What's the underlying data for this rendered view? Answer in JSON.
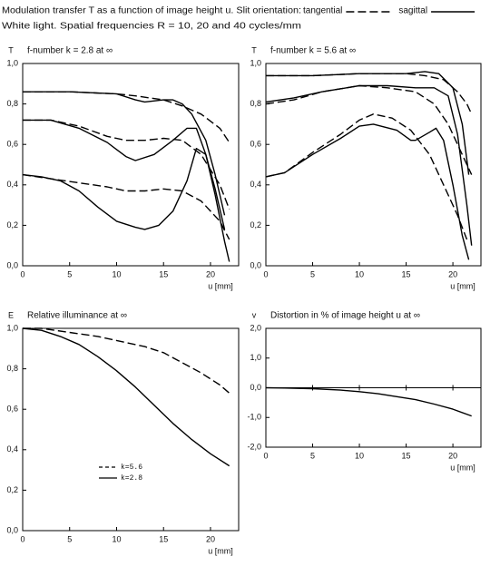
{
  "header": {
    "text": "Modulation transfer T as a function of image height u. Slit orientation:",
    "legend": [
      {
        "name": "tangential",
        "style": "dashed"
      },
      {
        "name": "sagittal",
        "style": "solid"
      }
    ],
    "subtitle": "White light. Spatial frequencies R = 10, 20 and 40 cycles/mm"
  },
  "chart_data": [
    {
      "type": "line",
      "title": "f-number k = 2.8 at ∞",
      "ylabel": "T",
      "xlabel": "u [mm]",
      "xlim": [
        0,
        23
      ],
      "ylim": [
        0,
        1
      ],
      "xticks": [
        0,
        5,
        10,
        15,
        20
      ],
      "yticks": [
        {
          "value": 0,
          "label": "0,0"
        },
        {
          "value": 0.2,
          "label": "0,2"
        },
        {
          "value": 0.4,
          "label": "0,4"
        },
        {
          "value": 0.6,
          "label": "0,6"
        },
        {
          "value": 0.8,
          "label": "0,8"
        },
        {
          "value": 1,
          "label": "1,0"
        }
      ],
      "series": [
        {
          "style": "solid",
          "color": "#000000",
          "x": [
            0,
            5,
            10,
            12,
            13,
            15,
            16,
            17,
            18,
            19.5,
            20.5,
            21.5
          ],
          "values": [
            0.86,
            0.86,
            0.85,
            0.82,
            0.81,
            0.82,
            0.82,
            0.8,
            0.75,
            0.62,
            0.45,
            0.25
          ]
        },
        {
          "style": "dashed",
          "color": "#000000",
          "x": [
            0,
            5,
            10,
            12,
            15,
            17,
            19,
            21,
            22
          ],
          "values": [
            0.86,
            0.86,
            0.85,
            0.84,
            0.82,
            0.79,
            0.75,
            0.68,
            0.61
          ]
        },
        {
          "style": "solid",
          "color": "#000000",
          "x": [
            0,
            3,
            6,
            9,
            11,
            12,
            14,
            16,
            17.5,
            18.5,
            19.5,
            20.5,
            21.5
          ],
          "values": [
            0.72,
            0.72,
            0.68,
            0.61,
            0.54,
            0.52,
            0.55,
            0.62,
            0.68,
            0.68,
            0.55,
            0.38,
            0.18
          ]
        },
        {
          "style": "dashed",
          "color": "#000000",
          "x": [
            0,
            3,
            6,
            9,
            11,
            13,
            15,
            17,
            19,
            21,
            22
          ],
          "values": [
            0.72,
            0.72,
            0.69,
            0.64,
            0.62,
            0.62,
            0.63,
            0.62,
            0.55,
            0.4,
            0.28
          ]
        },
        {
          "style": "solid",
          "color": "#000000",
          "x": [
            0,
            2,
            4,
            6,
            8,
            10,
            12,
            13,
            14.5,
            16,
            17.5,
            18.5,
            19.5,
            20.5,
            21.5,
            22
          ],
          "values": [
            0.45,
            0.44,
            0.42,
            0.37,
            0.29,
            0.22,
            0.19,
            0.18,
            0.2,
            0.27,
            0.42,
            0.58,
            0.55,
            0.35,
            0.12,
            0.02
          ]
        },
        {
          "style": "dashed",
          "color": "#000000",
          "x": [
            0,
            3,
            6,
            9,
            11,
            13,
            15,
            17,
            19,
            21,
            22
          ],
          "values": [
            0.45,
            0.43,
            0.41,
            0.39,
            0.37,
            0.37,
            0.38,
            0.37,
            0.32,
            0.22,
            0.13
          ]
        }
      ]
    },
    {
      "type": "line",
      "title": "f-number k = 5.6 at ∞",
      "ylabel": "T",
      "xlabel": "u [mm]",
      "xlim": [
        0,
        23
      ],
      "ylim": [
        0,
        1
      ],
      "xticks": [
        0,
        5,
        10,
        15,
        20
      ],
      "yticks": [
        {
          "value": 0,
          "label": "0,0"
        },
        {
          "value": 0.2,
          "label": "0,2"
        },
        {
          "value": 0.4,
          "label": "0,4"
        },
        {
          "value": 0.6,
          "label": "0,6"
        },
        {
          "value": 0.8,
          "label": "0,8"
        },
        {
          "value": 1,
          "label": "1,0"
        }
      ],
      "series": [
        {
          "style": "solid",
          "color": "#000000",
          "x": [
            0,
            5,
            10,
            15,
            17,
            18.5,
            20,
            21,
            21.7
          ],
          "values": [
            0.94,
            0.94,
            0.95,
            0.95,
            0.96,
            0.95,
            0.88,
            0.7,
            0.45
          ]
        },
        {
          "style": "dashed",
          "color": "#000000",
          "x": [
            0,
            5,
            10,
            15,
            17,
            19,
            20.5,
            21.5,
            22
          ],
          "values": [
            0.94,
            0.94,
            0.95,
            0.95,
            0.94,
            0.92,
            0.86,
            0.8,
            0.75
          ]
        },
        {
          "style": "solid",
          "color": "#000000",
          "x": [
            0,
            3,
            6,
            10,
            13,
            16,
            18,
            19.5,
            20.5,
            21.5,
            22
          ],
          "values": [
            0.81,
            0.83,
            0.86,
            0.89,
            0.89,
            0.88,
            0.88,
            0.84,
            0.65,
            0.3,
            0.1
          ]
        },
        {
          "style": "dashed",
          "color": "#000000",
          "x": [
            0,
            3,
            6,
            10,
            13,
            16,
            18,
            19.5,
            20.5,
            21.5,
            22
          ],
          "values": [
            0.8,
            0.82,
            0.86,
            0.89,
            0.88,
            0.86,
            0.8,
            0.7,
            0.6,
            0.5,
            0.45
          ]
        },
        {
          "style": "solid",
          "color": "#000000",
          "x": [
            0,
            2,
            5,
            8,
            10,
            11.5,
            14,
            15.5,
            16,
            17.5,
            18.2,
            19,
            20,
            21,
            21.7
          ],
          "values": [
            0.44,
            0.46,
            0.55,
            0.63,
            0.69,
            0.7,
            0.67,
            0.62,
            0.62,
            0.66,
            0.68,
            0.62,
            0.4,
            0.15,
            0.03
          ]
        },
        {
          "style": "dashed",
          "color": "#000000",
          "x": [
            0,
            2,
            5,
            8,
            10,
            11.5,
            13.5,
            15.5,
            17.5,
            19,
            20.5,
            21.5
          ],
          "values": [
            0.44,
            0.46,
            0.56,
            0.65,
            0.72,
            0.75,
            0.73,
            0.67,
            0.55,
            0.4,
            0.25,
            0.13
          ]
        }
      ]
    },
    {
      "type": "line",
      "title": "Relative illuminance at ∞",
      "ylabel": "E",
      "xlabel": "u [mm]",
      "xlim": [
        0,
        23
      ],
      "ylim": [
        0,
        1
      ],
      "xticks": [
        0,
        5,
        10,
        15,
        20
      ],
      "legend": "lower center",
      "yticks": [
        {
          "value": 0,
          "label": "0,0"
        },
        {
          "value": 0.2,
          "label": "0,2"
        },
        {
          "value": 0.4,
          "label": "0,4"
        },
        {
          "value": 0.6,
          "label": "0,6"
        },
        {
          "value": 0.8,
          "label": "0,8"
        },
        {
          "value": 1,
          "label": "1,0"
        }
      ],
      "series": [
        {
          "name": "k=5.6",
          "style": "dashed",
          "color": "#000000",
          "x": [
            0,
            2,
            5,
            8,
            10,
            13,
            15,
            17,
            19,
            21,
            22
          ],
          "values": [
            1,
            1,
            0.98,
            0.96,
            0.94,
            0.91,
            0.88,
            0.83,
            0.78,
            0.72,
            0.68
          ]
        },
        {
          "name": "k=2.8",
          "style": "solid",
          "color": "#000000",
          "x": [
            0,
            2,
            4,
            6,
            8,
            10,
            12,
            14,
            16,
            18,
            20,
            22
          ],
          "values": [
            1,
            0.99,
            0.96,
            0.92,
            0.86,
            0.79,
            0.71,
            0.62,
            0.53,
            0.45,
            0.38,
            0.32
          ]
        }
      ]
    },
    {
      "type": "line",
      "title": "Distortion in % of image height u at ∞",
      "ylabel": "v",
      "xlabel": "u [mm]",
      "xlim": [
        0,
        23
      ],
      "ylim": [
        -2,
        2
      ],
      "xticks": [
        0,
        5,
        10,
        15,
        20
      ],
      "zero_line": true,
      "yticks": [
        {
          "value": -2,
          "label": "-2,0"
        },
        {
          "value": -1,
          "label": "-1,0"
        },
        {
          "value": 0,
          "label": "0,0"
        },
        {
          "value": 1,
          "label": "1,0"
        },
        {
          "value": 2,
          "label": "2,0"
        }
      ],
      "series": [
        {
          "style": "solid",
          "color": "#000000",
          "x": [
            0,
            2,
            5,
            8,
            10,
            12,
            14,
            16,
            18,
            20,
            22
          ],
          "values": [
            0,
            -0.01,
            -0.03,
            -0.08,
            -0.13,
            -0.2,
            -0.3,
            -0.4,
            -0.55,
            -0.72,
            -0.95
          ]
        }
      ]
    }
  ]
}
